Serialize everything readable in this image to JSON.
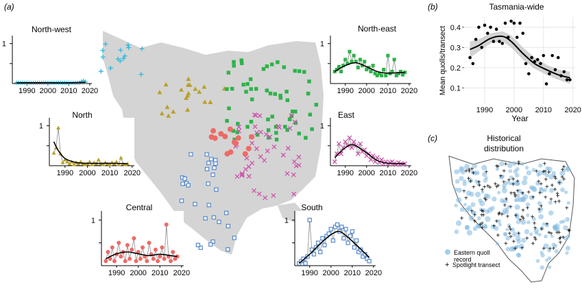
{
  "panel_labels": {
    "a": "(a)",
    "b": "(b)",
    "c": "(c)"
  },
  "colors": {
    "north_west": "#33bbdd",
    "north": "#b8a02a",
    "north_east": "#2db34a",
    "east": "#cc55aa",
    "central": "#ee6a66",
    "south": "#5588cc",
    "land": "#d4d4d4",
    "historical_record": "#7fb8e0"
  },
  "chart_data": [
    {
      "type": "scatter",
      "id": "north_west",
      "title": "North-west",
      "marker": "plus",
      "x_ticks": [
        "1990",
        "2000",
        "2010",
        "2020"
      ],
      "y_ticks": [
        "1"
      ],
      "xlim": [
        1983,
        2021
      ],
      "ylim": [
        0,
        1.2
      ],
      "points": [
        [
          1985,
          0.02
        ],
        [
          1986,
          0.02
        ],
        [
          1987,
          0.02
        ],
        [
          1988,
          0.02
        ],
        [
          1989,
          0.02
        ],
        [
          1990,
          0.02
        ],
        [
          1991,
          0.02
        ],
        [
          1992,
          0.02
        ],
        [
          1993,
          0.02
        ],
        [
          1994,
          0.02
        ],
        [
          1995,
          0.02
        ],
        [
          1996,
          0.02
        ],
        [
          1997,
          0.02
        ],
        [
          1998,
          0.02
        ],
        [
          1999,
          0.02
        ],
        [
          2000,
          0.02
        ],
        [
          2001,
          0.02
        ],
        [
          2002,
          0.02
        ],
        [
          2003,
          0.02
        ],
        [
          2004,
          0.02
        ],
        [
          2005,
          0.02
        ],
        [
          2006,
          0.02
        ],
        [
          2007,
          0.02
        ],
        [
          2008,
          0.02
        ],
        [
          2009,
          0.02
        ],
        [
          2010,
          0.02
        ],
        [
          2011,
          0.02
        ],
        [
          2012,
          0.02
        ],
        [
          2013,
          0.02
        ],
        [
          2014,
          0.02
        ],
        [
          2015,
          0.02
        ],
        [
          2016,
          0.05
        ],
        [
          2017,
          0.07
        ],
        [
          2018,
          0.04
        ]
      ],
      "trend": [
        [
          1985,
          0.02
        ],
        [
          2000,
          0.02
        ],
        [
          2010,
          0.02
        ],
        [
          2018,
          0.03
        ]
      ]
    },
    {
      "type": "scatter",
      "id": "north",
      "title": "North",
      "marker": "triangle",
      "x_ticks": [
        "1990",
        "2000",
        "2010",
        "2020"
      ],
      "y_ticks": [
        "1"
      ],
      "xlim": [
        1983,
        2021
      ],
      "ylim": [
        0,
        1.2
      ],
      "points": [
        [
          1985,
          0.32
        ],
        [
          1986,
          0.45
        ],
        [
          1987,
          0.95
        ],
        [
          1988,
          0.3
        ],
        [
          1989,
          0.08
        ],
        [
          1990,
          0.15
        ],
        [
          1991,
          0.1
        ],
        [
          1992,
          0.05
        ],
        [
          1993,
          0.1
        ],
        [
          1994,
          0.03
        ],
        [
          1995,
          0.08
        ],
        [
          1996,
          0.05
        ],
        [
          1997,
          0.1
        ],
        [
          1998,
          0.05
        ],
        [
          1999,
          0.03
        ],
        [
          2000,
          0.05
        ],
        [
          2001,
          0.1
        ],
        [
          2002,
          0.03
        ],
        [
          2003,
          0.08
        ],
        [
          2004,
          0.05
        ],
        [
          2005,
          0.15
        ],
        [
          2006,
          0.05
        ],
        [
          2007,
          0.03
        ],
        [
          2008,
          0.08
        ],
        [
          2009,
          0.05
        ],
        [
          2010,
          0.03
        ],
        [
          2011,
          0.08
        ],
        [
          2012,
          0.05
        ],
        [
          2013,
          0.1
        ],
        [
          2014,
          0.03
        ],
        [
          2015,
          0.2
        ],
        [
          2016,
          0.05
        ],
        [
          2017,
          0.03
        ],
        [
          2018,
          0.05
        ]
      ],
      "trend": [
        [
          1985,
          0.6
        ],
        [
          1987,
          0.38
        ],
        [
          1990,
          0.18
        ],
        [
          1995,
          0.08
        ],
        [
          2000,
          0.06
        ],
        [
          2010,
          0.06
        ],
        [
          2018,
          0.05
        ]
      ]
    },
    {
      "type": "scatter",
      "id": "north_east",
      "title": "North-east",
      "marker": "square",
      "x_ticks": [
        "1990",
        "2000",
        "2010",
        "2020"
      ],
      "y_ticks": [
        "1"
      ],
      "xlim": [
        1983,
        2021
      ],
      "ylim": [
        0,
        1.2
      ],
      "points": [
        [
          1985,
          0.3
        ],
        [
          1986,
          0.35
        ],
        [
          1987,
          0.42
        ],
        [
          1988,
          0.3
        ],
        [
          1989,
          0.45
        ],
        [
          1990,
          0.6
        ],
        [
          1991,
          0.5
        ],
        [
          1992,
          0.8
        ],
        [
          1993,
          0.55
        ],
        [
          1994,
          0.7
        ],
        [
          1995,
          0.55
        ],
        [
          1996,
          0.4
        ],
        [
          1997,
          0.6
        ],
        [
          1998,
          0.45
        ],
        [
          1999,
          0.55
        ],
        [
          2000,
          0.35
        ],
        [
          2001,
          0.4
        ],
        [
          2002,
          0.3
        ],
        [
          2003,
          0.45
        ],
        [
          2004,
          0.25
        ],
        [
          2005,
          0.2
        ],
        [
          2006,
          0.25
        ],
        [
          2007,
          0.2
        ],
        [
          2008,
          0.35
        ],
        [
          2009,
          0.2
        ],
        [
          2010,
          0.7
        ],
        [
          2011,
          0.25
        ],
        [
          2012,
          0.3
        ],
        [
          2013,
          0.6
        ],
        [
          2014,
          0.2
        ],
        [
          2015,
          0.25
        ],
        [
          2016,
          0.3
        ],
        [
          2017,
          0.22
        ],
        [
          2018,
          0.28
        ]
      ],
      "trend": [
        [
          1985,
          0.3
        ],
        [
          1990,
          0.45
        ],
        [
          1995,
          0.52
        ],
        [
          2000,
          0.42
        ],
        [
          2005,
          0.3
        ],
        [
          2010,
          0.26
        ],
        [
          2018,
          0.28
        ]
      ]
    },
    {
      "type": "scatter",
      "id": "east",
      "title": "East",
      "marker": "cross",
      "x_ticks": [
        "1990",
        "2000",
        "2010",
        "2020"
      ],
      "y_ticks": [
        "1"
      ],
      "xlim": [
        1983,
        2021
      ],
      "ylim": [
        0,
        1.2
      ],
      "points": [
        [
          1985,
          0.1
        ],
        [
          1986,
          0.3
        ],
        [
          1987,
          0.55
        ],
        [
          1988,
          0.3
        ],
        [
          1989,
          0.45
        ],
        [
          1990,
          0.6
        ],
        [
          1991,
          0.5
        ],
        [
          1992,
          0.7
        ],
        [
          1993,
          0.45
        ],
        [
          1994,
          0.6
        ],
        [
          1995,
          0.5
        ],
        [
          1996,
          0.3
        ],
        [
          1997,
          0.55
        ],
        [
          1998,
          0.35
        ],
        [
          1999,
          0.4
        ],
        [
          2000,
          0.25
        ],
        [
          2001,
          0.3
        ],
        [
          2002,
          0.15
        ],
        [
          2003,
          0.25
        ],
        [
          2004,
          0.1
        ],
        [
          2005,
          0.2
        ],
        [
          2006,
          0.08
        ],
        [
          2007,
          0.15
        ],
        [
          2008,
          0.05
        ],
        [
          2009,
          0.1
        ],
        [
          2010,
          0.05
        ],
        [
          2011,
          0.08
        ],
        [
          2012,
          0.1
        ],
        [
          2013,
          0.05
        ],
        [
          2014,
          0.03
        ],
        [
          2015,
          0.08
        ],
        [
          2016,
          0.05
        ],
        [
          2017,
          0.03
        ],
        [
          2018,
          0.05
        ]
      ],
      "trend": [
        [
          1985,
          0.2
        ],
        [
          1990,
          0.45
        ],
        [
          1994,
          0.52
        ],
        [
          2000,
          0.32
        ],
        [
          2005,
          0.13
        ],
        [
          2010,
          0.06
        ],
        [
          2018,
          0.05
        ]
      ]
    },
    {
      "type": "scatter",
      "id": "central",
      "title": "Central",
      "marker": "circle",
      "x_ticks": [
        "1990",
        "2000",
        "2010",
        "2020"
      ],
      "y_ticks": [
        "1"
      ],
      "xlim": [
        1983,
        2021
      ],
      "ylim": [
        0,
        1.2
      ],
      "points": [
        [
          1985,
          0.1
        ],
        [
          1986,
          0.3
        ],
        [
          1987,
          0.15
        ],
        [
          1988,
          0.4
        ],
        [
          1989,
          0.1
        ],
        [
          1990,
          0.25
        ],
        [
          1991,
          0.5
        ],
        [
          1992,
          0.2
        ],
        [
          1993,
          0.3
        ],
        [
          1994,
          0.1
        ],
        [
          1995,
          0.45
        ],
        [
          1996,
          0.15
        ],
        [
          1997,
          0.35
        ],
        [
          1998,
          0.6
        ],
        [
          1999,
          0.1
        ],
        [
          2000,
          0.3
        ],
        [
          2001,
          0.15
        ],
        [
          2002,
          0.4
        ],
        [
          2003,
          0.2
        ],
        [
          2004,
          0.1
        ],
        [
          2005,
          0.5
        ],
        [
          2006,
          0.25
        ],
        [
          2007,
          0.15
        ],
        [
          2008,
          0.35
        ],
        [
          2009,
          0.1
        ],
        [
          2010,
          0.2
        ],
        [
          2011,
          0.4
        ],
        [
          2012,
          0.15
        ],
        [
          2013,
          0.9
        ],
        [
          2014,
          0.2
        ],
        [
          2015,
          0.1
        ],
        [
          2016,
          0.3
        ],
        [
          2017,
          0.15
        ],
        [
          2018,
          0.2
        ]
      ],
      "trend": [
        [
          1985,
          0.15
        ],
        [
          1990,
          0.26
        ],
        [
          1995,
          0.3
        ],
        [
          2000,
          0.26
        ],
        [
          2005,
          0.22
        ],
        [
          2010,
          0.25
        ],
        [
          2015,
          0.22
        ],
        [
          2018,
          0.2
        ]
      ]
    },
    {
      "type": "scatter",
      "id": "south",
      "title": "South",
      "marker": "square",
      "x_ticks": [
        "1990",
        "2000",
        "2010",
        "2020"
      ],
      "y_ticks": [
        "1"
      ],
      "xlim": [
        1983,
        2021
      ],
      "ylim": [
        0,
        1.2
      ],
      "points": [
        [
          1985,
          0.05
        ],
        [
          1986,
          0.1
        ],
        [
          1987,
          0.15
        ],
        [
          1988,
          0.05
        ],
        [
          1989,
          0.2
        ],
        [
          1990,
          1.0
        ],
        [
          1991,
          0.35
        ],
        [
          1992,
          0.25
        ],
        [
          1993,
          0.4
        ],
        [
          1994,
          0.5
        ],
        [
          1995,
          0.3
        ],
        [
          1996,
          0.6
        ],
        [
          1997,
          0.45
        ],
        [
          1998,
          0.65
        ],
        [
          1999,
          0.7
        ],
        [
          2000,
          0.8
        ],
        [
          2001,
          0.55
        ],
        [
          2002,
          0.85
        ],
        [
          2003,
          0.9
        ],
        [
          2004,
          0.75
        ],
        [
          2005,
          0.85
        ],
        [
          2006,
          0.6
        ],
        [
          2007,
          0.8
        ],
        [
          2008,
          0.5
        ],
        [
          2009,
          0.65
        ],
        [
          2010,
          0.75
        ],
        [
          2011,
          0.4
        ],
        [
          2012,
          0.55
        ],
        [
          2013,
          0.3
        ],
        [
          2014,
          0.35
        ],
        [
          2015,
          0.2
        ],
        [
          2016,
          0.25
        ],
        [
          2017,
          0.15
        ],
        [
          2018,
          0.1
        ]
      ],
      "trend": [
        [
          1985,
          0.05
        ],
        [
          1990,
          0.25
        ],
        [
          1995,
          0.48
        ],
        [
          2000,
          0.68
        ],
        [
          2004,
          0.75
        ],
        [
          2008,
          0.62
        ],
        [
          2012,
          0.45
        ],
        [
          2018,
          0.18
        ]
      ]
    },
    {
      "type": "scatter",
      "id": "tasmania_wide",
      "title": "Tasmania-wide",
      "ylabel": "Mean quolls/transect",
      "xlabel": "Year",
      "marker": "circle",
      "x_ticks": [
        "1990",
        "2000",
        "2010",
        "2020"
      ],
      "y_ticks": [
        "0.1",
        "0.2",
        "0.3",
        "0.4"
      ],
      "xlim": [
        1983,
        2021
      ],
      "ylim": [
        0.02,
        0.45
      ],
      "grid": true,
      "points": [
        [
          1985,
          0.25
        ],
        [
          1986,
          0.22
        ],
        [
          1987,
          0.34
        ],
        [
          1988,
          0.4
        ],
        [
          1989,
          0.3
        ],
        [
          1990,
          0.41
        ],
        [
          1991,
          0.37
        ],
        [
          1992,
          0.4
        ],
        [
          1993,
          0.33
        ],
        [
          1994,
          0.39
        ],
        [
          1995,
          0.33
        ],
        [
          1996,
          0.32
        ],
        [
          1997,
          0.42
        ],
        [
          1998,
          0.35
        ],
        [
          1999,
          0.43
        ],
        [
          2000,
          0.42
        ],
        [
          2001,
          0.35
        ],
        [
          2002,
          0.42
        ],
        [
          2003,
          0.37
        ],
        [
          2004,
          0.22
        ],
        [
          2005,
          0.17
        ],
        [
          2006,
          0.25
        ],
        [
          2007,
          0.23
        ],
        [
          2008,
          0.24
        ],
        [
          2009,
          0.22
        ],
        [
          2010,
          0.26
        ],
        [
          2011,
          0.12
        ],
        [
          2012,
          0.17
        ],
        [
          2013,
          0.26
        ],
        [
          2014,
          0.19
        ],
        [
          2015,
          0.25
        ],
        [
          2016,
          0.16
        ],
        [
          2017,
          0.18
        ],
        [
          2018,
          0.14
        ],
        [
          2019,
          0.14
        ]
      ],
      "trend": [
        [
          1985,
          0.29
        ],
        [
          1988,
          0.31
        ],
        [
          1992,
          0.345
        ],
        [
          1996,
          0.355
        ],
        [
          1999,
          0.33
        ],
        [
          2003,
          0.27
        ],
        [
          2007,
          0.22
        ],
        [
          2011,
          0.19
        ],
        [
          2015,
          0.165
        ],
        [
          2019,
          0.15
        ]
      ],
      "band_upper": [
        [
          1985,
          0.33
        ],
        [
          1988,
          0.34
        ],
        [
          1992,
          0.37
        ],
        [
          1996,
          0.38
        ],
        [
          1999,
          0.36
        ],
        [
          2003,
          0.3
        ],
        [
          2007,
          0.25
        ],
        [
          2011,
          0.215
        ],
        [
          2015,
          0.19
        ],
        [
          2019,
          0.18
        ]
      ],
      "band_lower": [
        [
          1985,
          0.25
        ],
        [
          1988,
          0.28
        ],
        [
          1992,
          0.32
        ],
        [
          1996,
          0.33
        ],
        [
          1999,
          0.3
        ],
        [
          2003,
          0.24
        ],
        [
          2007,
          0.195
        ],
        [
          2011,
          0.165
        ],
        [
          2015,
          0.14
        ],
        [
          2019,
          0.12
        ]
      ]
    }
  ],
  "map_c": {
    "title_line1": "Historical",
    "title_line2": "distribution",
    "legend_record_line1": "Eastern quoll",
    "legend_record_line2": "record",
    "legend_transect": "Spotlight transect"
  }
}
